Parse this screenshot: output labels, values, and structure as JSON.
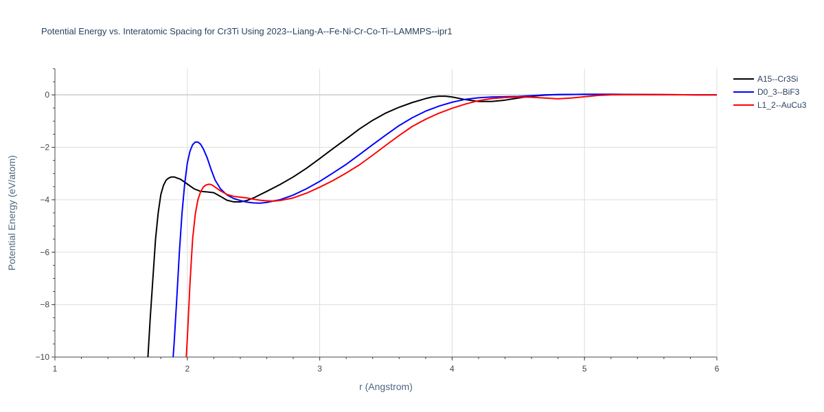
{
  "chart_data": {
    "type": "line",
    "title": "Potential Energy vs. Interatomic Spacing for Cr3Ti Using 2023--Liang-A--Fe-Ni-Cr-Co-Ti--LAMMPS--ipr1",
    "xlabel": "r (Angstrom)",
    "ylabel": "Potential Energy (eV/atom)",
    "xlim": [
      1,
      6
    ],
    "ylim": [
      -10,
      1
    ],
    "xticks": [
      1,
      2,
      3,
      4,
      5,
      6
    ],
    "yticks": [
      0,
      -2,
      -4,
      -6,
      -8,
      -10
    ],
    "grid": true,
    "legend_position": "top-right",
    "series": [
      {
        "name": "A15--Cr3Si",
        "color": "#000000",
        "points": [
          [
            1.7,
            -10.2
          ],
          [
            1.72,
            -8.5
          ],
          [
            1.74,
            -7.0
          ],
          [
            1.76,
            -5.5
          ],
          [
            1.78,
            -4.5
          ],
          [
            1.8,
            -3.8
          ],
          [
            1.82,
            -3.45
          ],
          [
            1.84,
            -3.25
          ],
          [
            1.86,
            -3.17
          ],
          [
            1.88,
            -3.13
          ],
          [
            1.9,
            -3.13
          ],
          [
            1.95,
            -3.22
          ],
          [
            2.0,
            -3.4
          ],
          [
            2.05,
            -3.58
          ],
          [
            2.1,
            -3.68
          ],
          [
            2.15,
            -3.7
          ],
          [
            2.2,
            -3.73
          ],
          [
            2.25,
            -3.87
          ],
          [
            2.3,
            -4.02
          ],
          [
            2.35,
            -4.08
          ],
          [
            2.4,
            -4.08
          ],
          [
            2.45,
            -4.03
          ],
          [
            2.5,
            -3.93
          ],
          [
            2.6,
            -3.68
          ],
          [
            2.7,
            -3.42
          ],
          [
            2.8,
            -3.13
          ],
          [
            2.9,
            -2.8
          ],
          [
            3.0,
            -2.43
          ],
          [
            3.1,
            -2.05
          ],
          [
            3.2,
            -1.68
          ],
          [
            3.3,
            -1.3
          ],
          [
            3.4,
            -0.97
          ],
          [
            3.5,
            -0.69
          ],
          [
            3.6,
            -0.47
          ],
          [
            3.7,
            -0.29
          ],
          [
            3.8,
            -0.14
          ],
          [
            3.85,
            -0.08
          ],
          [
            3.9,
            -0.05
          ],
          [
            3.95,
            -0.05
          ],
          [
            4.0,
            -0.08
          ],
          [
            4.1,
            -0.18
          ],
          [
            4.2,
            -0.25
          ],
          [
            4.3,
            -0.25
          ],
          [
            4.4,
            -0.2
          ],
          [
            4.5,
            -0.12
          ],
          [
            4.6,
            -0.05
          ],
          [
            4.7,
            -0.01
          ],
          [
            4.8,
            0.01
          ],
          [
            5.0,
            0.02
          ],
          [
            5.2,
            0.02
          ],
          [
            5.5,
            0.01
          ],
          [
            6.0,
            0.0
          ]
        ]
      },
      {
        "name": "D0_3--BiF3",
        "color": "#0000ff",
        "points": [
          [
            1.89,
            -10.2
          ],
          [
            1.9,
            -9.5
          ],
          [
            1.92,
            -7.8
          ],
          [
            1.94,
            -6.0
          ],
          [
            1.96,
            -4.5
          ],
          [
            1.98,
            -3.4
          ],
          [
            2.0,
            -2.6
          ],
          [
            2.02,
            -2.15
          ],
          [
            2.04,
            -1.9
          ],
          [
            2.06,
            -1.8
          ],
          [
            2.08,
            -1.8
          ],
          [
            2.1,
            -1.88
          ],
          [
            2.12,
            -2.05
          ],
          [
            2.15,
            -2.4
          ],
          [
            2.18,
            -2.85
          ],
          [
            2.21,
            -3.25
          ],
          [
            2.25,
            -3.58
          ],
          [
            2.3,
            -3.82
          ],
          [
            2.35,
            -3.95
          ],
          [
            2.4,
            -4.03
          ],
          [
            2.45,
            -4.09
          ],
          [
            2.5,
            -4.12
          ],
          [
            2.55,
            -4.13
          ],
          [
            2.6,
            -4.1
          ],
          [
            2.7,
            -4.0
          ],
          [
            2.8,
            -3.82
          ],
          [
            2.9,
            -3.58
          ],
          [
            3.0,
            -3.3
          ],
          [
            3.1,
            -2.98
          ],
          [
            3.2,
            -2.65
          ],
          [
            3.3,
            -2.28
          ],
          [
            3.4,
            -1.9
          ],
          [
            3.5,
            -1.53
          ],
          [
            3.6,
            -1.17
          ],
          [
            3.7,
            -0.87
          ],
          [
            3.8,
            -0.62
          ],
          [
            3.9,
            -0.43
          ],
          [
            4.0,
            -0.28
          ],
          [
            4.1,
            -0.17
          ],
          [
            4.2,
            -0.11
          ],
          [
            4.3,
            -0.08
          ],
          [
            4.4,
            -0.07
          ],
          [
            4.5,
            -0.06
          ],
          [
            4.6,
            -0.03
          ],
          [
            4.7,
            0.0
          ],
          [
            4.8,
            0.01
          ],
          [
            5.0,
            0.02
          ],
          [
            5.2,
            0.02
          ],
          [
            5.5,
            0.01
          ],
          [
            6.0,
            0.0
          ]
        ]
      },
      {
        "name": "L1_2--AuCu3",
        "color": "#ff0000",
        "points": [
          [
            1.99,
            -10.2
          ],
          [
            2.0,
            -9.3
          ],
          [
            2.02,
            -7.2
          ],
          [
            2.04,
            -5.5
          ],
          [
            2.06,
            -4.55
          ],
          [
            2.08,
            -4.0
          ],
          [
            2.1,
            -3.7
          ],
          [
            2.12,
            -3.52
          ],
          [
            2.14,
            -3.44
          ],
          [
            2.16,
            -3.41
          ],
          [
            2.18,
            -3.42
          ],
          [
            2.2,
            -3.48
          ],
          [
            2.25,
            -3.66
          ],
          [
            2.3,
            -3.8
          ],
          [
            2.35,
            -3.87
          ],
          [
            2.4,
            -3.9
          ],
          [
            2.45,
            -3.93
          ],
          [
            2.5,
            -3.98
          ],
          [
            2.55,
            -4.02
          ],
          [
            2.6,
            -4.04
          ],
          [
            2.65,
            -4.05
          ],
          [
            2.7,
            -4.03
          ],
          [
            2.8,
            -3.93
          ],
          [
            2.9,
            -3.75
          ],
          [
            3.0,
            -3.52
          ],
          [
            3.1,
            -3.27
          ],
          [
            3.2,
            -2.98
          ],
          [
            3.3,
            -2.67
          ],
          [
            3.4,
            -2.3
          ],
          [
            3.5,
            -1.92
          ],
          [
            3.6,
            -1.55
          ],
          [
            3.7,
            -1.2
          ],
          [
            3.8,
            -0.93
          ],
          [
            3.9,
            -0.7
          ],
          [
            4.0,
            -0.51
          ],
          [
            4.1,
            -0.35
          ],
          [
            4.2,
            -0.22
          ],
          [
            4.3,
            -0.14
          ],
          [
            4.4,
            -0.1
          ],
          [
            4.5,
            -0.08
          ],
          [
            4.6,
            -0.09
          ],
          [
            4.7,
            -0.12
          ],
          [
            4.8,
            -0.15
          ],
          [
            4.9,
            -0.12
          ],
          [
            5.0,
            -0.07
          ],
          [
            5.1,
            -0.02
          ],
          [
            5.2,
            0.0
          ],
          [
            5.5,
            0.01
          ],
          [
            6.0,
            0.0
          ]
        ]
      }
    ]
  }
}
